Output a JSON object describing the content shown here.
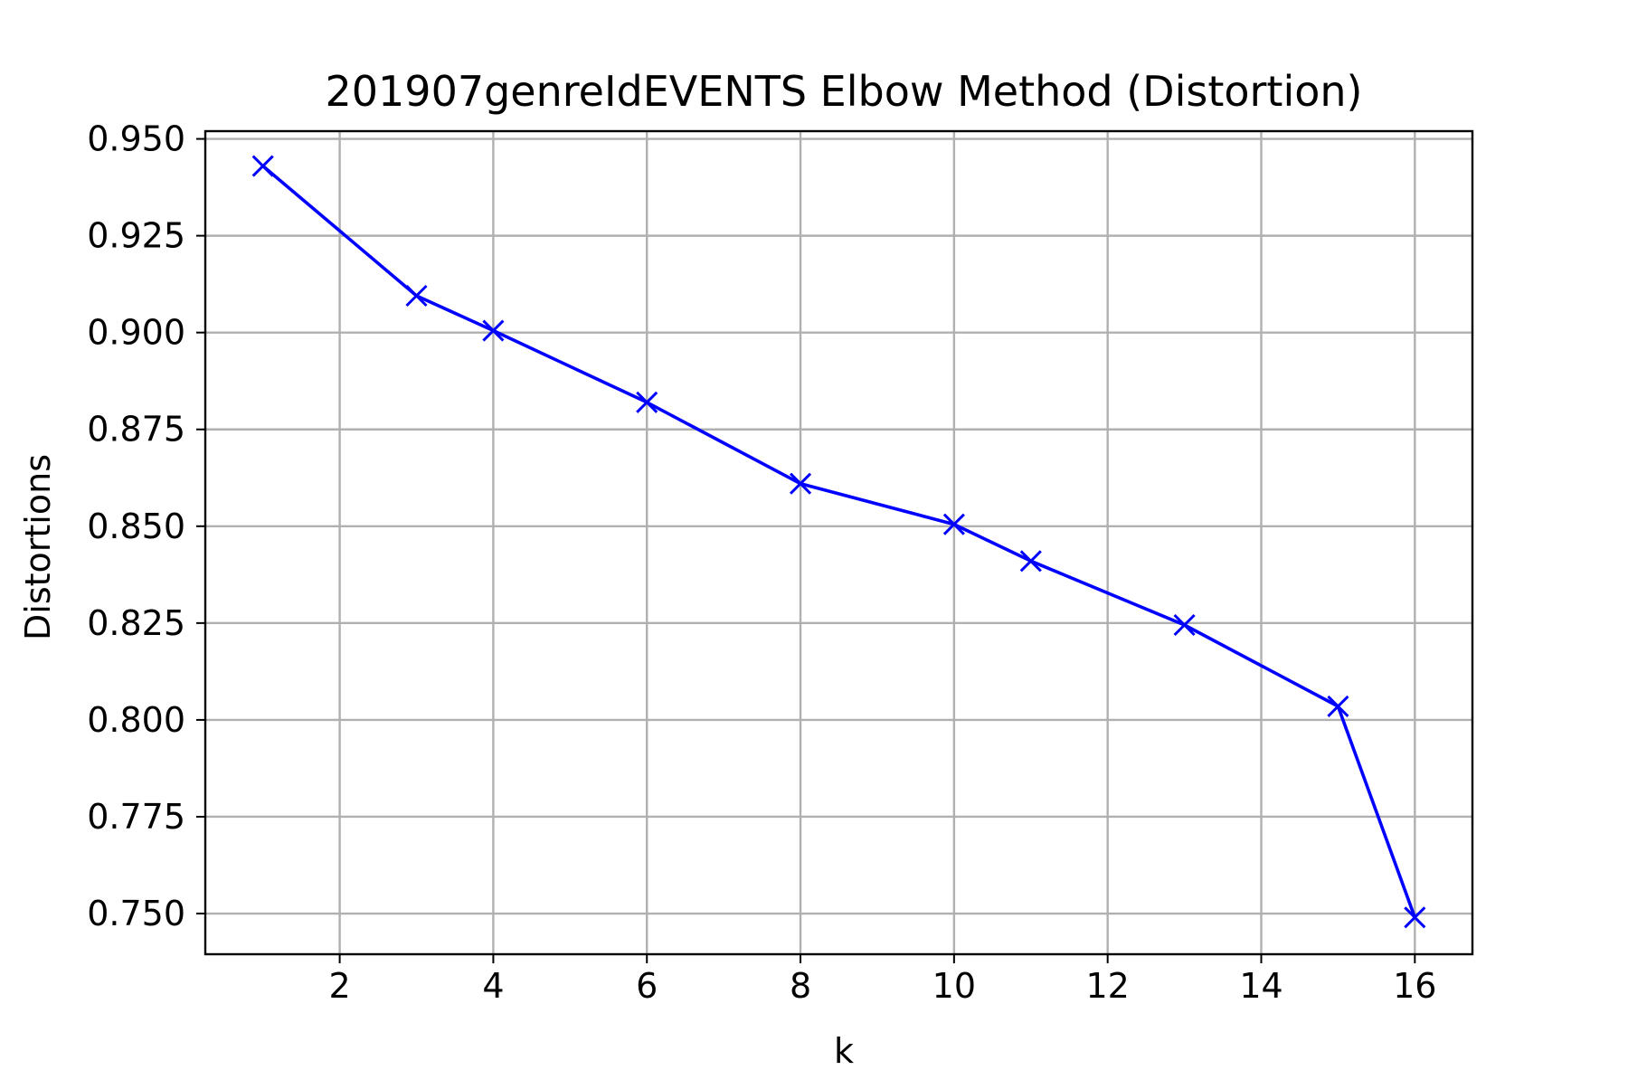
{
  "chart_data": {
    "type": "line",
    "title": "201907genreIdEVENTS Elbow Method (Distortion)",
    "xlabel": "k",
    "ylabel": "Distortions",
    "xlim": [
      0.25,
      16.75
    ],
    "ylim": [
      0.7395,
      0.952
    ],
    "x_ticks": [
      2,
      4,
      6,
      8,
      10,
      12,
      14,
      16
    ],
    "y_ticks": [
      0.75,
      0.775,
      0.8,
      0.825,
      0.85,
      0.875,
      0.9,
      0.925,
      0.95
    ],
    "y_tick_labels": [
      "0.750",
      "0.775",
      "0.800",
      "0.825",
      "0.850",
      "0.875",
      "0.900",
      "0.925",
      "0.950"
    ],
    "grid": true,
    "marker": "x",
    "line_color": "#0000ff",
    "series": [
      {
        "x": [
          1,
          3,
          4,
          6,
          8,
          10,
          11,
          13,
          15,
          16
        ],
        "values": [
          0.943,
          0.9095,
          0.9005,
          0.882,
          0.861,
          0.8505,
          0.841,
          0.8245,
          0.8035,
          0.749
        ]
      }
    ]
  }
}
